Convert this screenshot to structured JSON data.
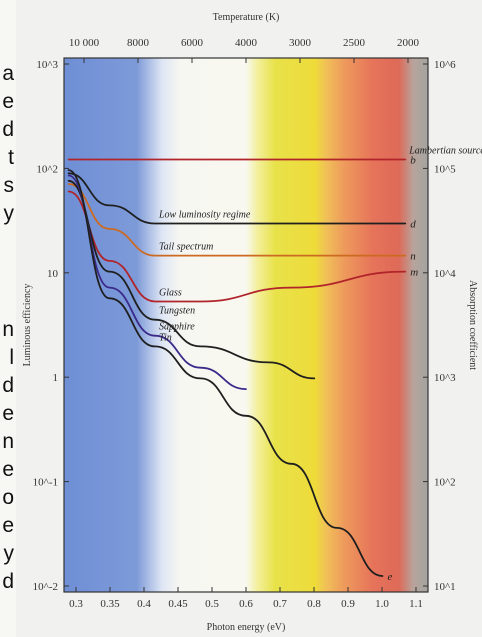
{
  "left_text": {
    "lines": [
      "a",
      "e",
      "d",
      "t",
      "s",
      "y",
      "",
      "n",
      "l",
      "d",
      "e",
      "n",
      "e",
      "o",
      "e",
      "y",
      "d"
    ]
  },
  "chart_data": {
    "type": "line",
    "title": "",
    "top_axis_title": "Temperature (K)",
    "top_ticks": [
      "10 000",
      "8000",
      "6000",
      "4000",
      "3000",
      "2500",
      "2000"
    ],
    "bottom_ticks": [
      "0.3",
      "0.35",
      "0.4",
      "0.45",
      "0.5",
      "0.6",
      "0.7",
      "0.8",
      "0.9",
      "1.0",
      "1.1"
    ],
    "bottom_axis_title": "Photon energy (eV)",
    "left_axis_title": "Luminous efficiency",
    "left_ticks": [
      "10^3",
      "10^2",
      "10",
      "1",
      "10^-1",
      "10^-2"
    ],
    "right_axis_title": "Absorption coefficient",
    "right_ticks": [
      "10^6",
      "10^5",
      "10^4",
      "10^3",
      "10^2",
      "10^1"
    ],
    "xlim": [
      0.3,
      1.1
    ],
    "ylim_log10": [
      -2,
      3
    ],
    "series": [
      {
        "name": "Lambertian source",
        "letter": "b",
        "color": "#b0242a",
        "points": [
          [
            0.31,
            2.05
          ],
          [
            0.5,
            2.05
          ],
          [
            1.05,
            2.05
          ]
        ]
      },
      {
        "name": "Low luminosity regime",
        "letter": "d",
        "color": "#1f1f1f",
        "points": [
          [
            0.31,
            1.92
          ],
          [
            0.4,
            1.62
          ],
          [
            0.5,
            1.45
          ],
          [
            1.05,
            1.45
          ]
        ]
      },
      {
        "name": "Tail spectrum",
        "letter": "n",
        "color": "#cc6a22",
        "points": [
          [
            0.31,
            1.82
          ],
          [
            0.4,
            1.4
          ],
          [
            0.5,
            1.15
          ],
          [
            1.05,
            1.15
          ]
        ]
      },
      {
        "name": "Glass",
        "letter": "m",
        "color": "#b0242a",
        "points": [
          [
            0.31,
            1.75
          ],
          [
            0.4,
            1.1
          ],
          [
            0.5,
            0.72
          ],
          [
            0.6,
            0.72
          ],
          [
            0.8,
            0.85
          ],
          [
            1.05,
            1.0
          ]
        ]
      },
      {
        "name": "Tungsten",
        "letter": "",
        "color": "#1f1f1f",
        "points": [
          [
            0.31,
            1.85
          ],
          [
            0.4,
            1.0
          ],
          [
            0.5,
            0.55
          ],
          [
            0.6,
            0.3
          ],
          [
            0.75,
            0.15
          ],
          [
            0.85,
            0.0
          ]
        ]
      },
      {
        "name": "Sapphire",
        "letter": "",
        "color": "#3b2a8a",
        "points": [
          [
            0.31,
            1.9
          ],
          [
            0.4,
            0.85
          ],
          [
            0.5,
            0.4
          ],
          [
            0.6,
            0.1
          ],
          [
            0.7,
            -0.1
          ]
        ]
      },
      {
        "name": "Tin",
        "letter": "e",
        "color": "#1f1f1f",
        "points": [
          [
            0.31,
            1.95
          ],
          [
            0.4,
            0.75
          ],
          [
            0.5,
            0.3
          ],
          [
            0.6,
            0.0
          ],
          [
            0.7,
            -0.35
          ],
          [
            0.8,
            -0.8
          ],
          [
            0.9,
            -1.4
          ],
          [
            1.0,
            -1.85
          ]
        ]
      }
    ]
  }
}
